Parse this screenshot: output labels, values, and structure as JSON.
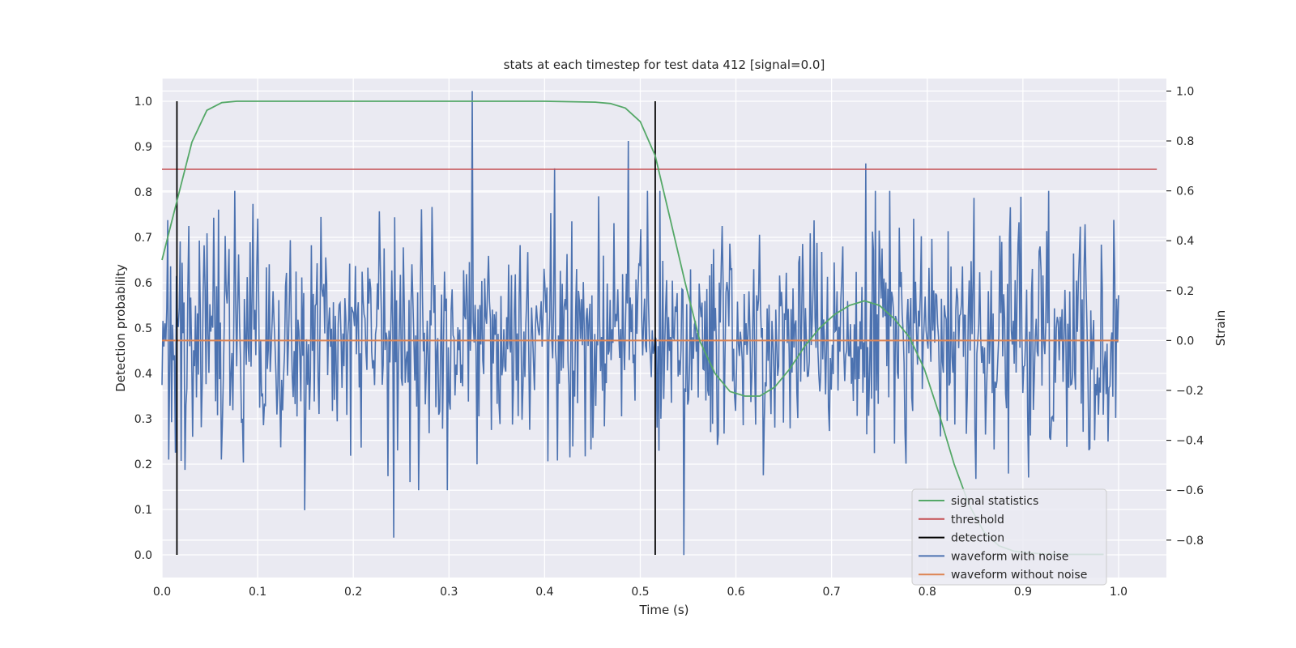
{
  "chart_data": {
    "type": "line",
    "title": "stats at each timestep for test data 412 [signal=0.0]",
    "xlabel": "Time (s)",
    "ylabel": "Detection probability",
    "ylabel_right": "Strain",
    "xlim": [
      0.0,
      1.05
    ],
    "ylim": [
      -0.05,
      1.05
    ],
    "ylim_right": [
      -0.95,
      1.05
    ],
    "xticks": [
      "0.0",
      "0.1",
      "0.2",
      "0.3",
      "0.4",
      "0.5",
      "0.6",
      "0.7",
      "0.8",
      "0.9",
      "1.0"
    ],
    "yticks": [
      "0.0",
      "0.1",
      "0.2",
      "0.3",
      "0.4",
      "0.5",
      "0.6",
      "0.7",
      "0.8",
      "0.9",
      "1.0"
    ],
    "yticks_right": [
      "−0.8",
      "−0.6",
      "−0.4",
      "−0.2",
      "0.0",
      "0.2",
      "0.4",
      "0.6",
      "0.8",
      "1.0"
    ],
    "grid": true,
    "legend_position": "bottom-right",
    "colors": {
      "background": "#eaeaf2",
      "grid": "#ffffff",
      "signal_statistics": "#55a868",
      "threshold": "#c44e52",
      "detection": "#000000",
      "waveform_with_noise": "#4c72b0",
      "waveform_without_noise": "#dd8452"
    },
    "series": [
      {
        "name": "signal statistics",
        "axis": "left",
        "x": [
          0.0,
          0.0156,
          0.0313,
          0.0469,
          0.0625,
          0.0781,
          0.0938,
          0.1094,
          0.125,
          0.2,
          0.3,
          0.4,
          0.4531,
          0.4688,
          0.4844,
          0.5,
          0.5156,
          0.5313,
          0.5469,
          0.5625,
          0.5781,
          0.5938,
          0.6094,
          0.625,
          0.6406,
          0.6563,
          0.6719,
          0.6875,
          0.7031,
          0.7188,
          0.7344,
          0.75,
          0.7656,
          0.7813,
          0.7969,
          0.8125,
          0.8281,
          0.8438,
          0.8594,
          0.875,
          0.8906,
          0.9063,
          0.9219,
          0.9375,
          0.9531,
          0.9688,
          0.9844
        ],
        "y": [
          0.65,
          0.78,
          0.91,
          0.98,
          0.997,
          1.0,
          1.0,
          1.0,
          1.0,
          1.0,
          1.0,
          1.0,
          0.998,
          0.995,
          0.985,
          0.955,
          0.88,
          0.74,
          0.6,
          0.47,
          0.4,
          0.36,
          0.35,
          0.35,
          0.37,
          0.41,
          0.46,
          0.5,
          0.53,
          0.55,
          0.56,
          0.55,
          0.52,
          0.48,
          0.41,
          0.31,
          0.2,
          0.11,
          0.05,
          0.02,
          0.008,
          0.004,
          0.002,
          0.001,
          0.001,
          0.001,
          0.001
        ]
      },
      {
        "name": "threshold",
        "axis": "left",
        "type": "hline",
        "y": 0.85,
        "x_range": [
          0.0,
          1.04
        ]
      },
      {
        "name": "detection",
        "axis": "left",
        "type": "vlines",
        "x": [
          0.0156,
          0.5156
        ],
        "y_range": [
          0.0,
          1.0
        ]
      },
      {
        "name": "waveform with noise",
        "axis": "right",
        "x_range": [
          0.0,
          1.0
        ],
        "num_points": 1000,
        "seed": 412,
        "stddev": 0.22,
        "spikes": [
          {
            "x": 0.324,
            "y": 1.0
          },
          {
            "x": 0.487,
            "y": 0.8
          },
          {
            "x": 0.546,
            "y": -0.86
          },
          {
            "x": 0.736,
            "y": 0.71
          },
          {
            "x": 0.41,
            "y": 0.69
          },
          {
            "x": 0.242,
            "y": -0.79
          },
          {
            "x": 0.149,
            "y": -0.68
          }
        ]
      },
      {
        "name": "waveform without noise",
        "axis": "right",
        "type": "hline",
        "y": 0.0,
        "x_range": [
          0.0,
          1.0
        ]
      }
    ]
  }
}
